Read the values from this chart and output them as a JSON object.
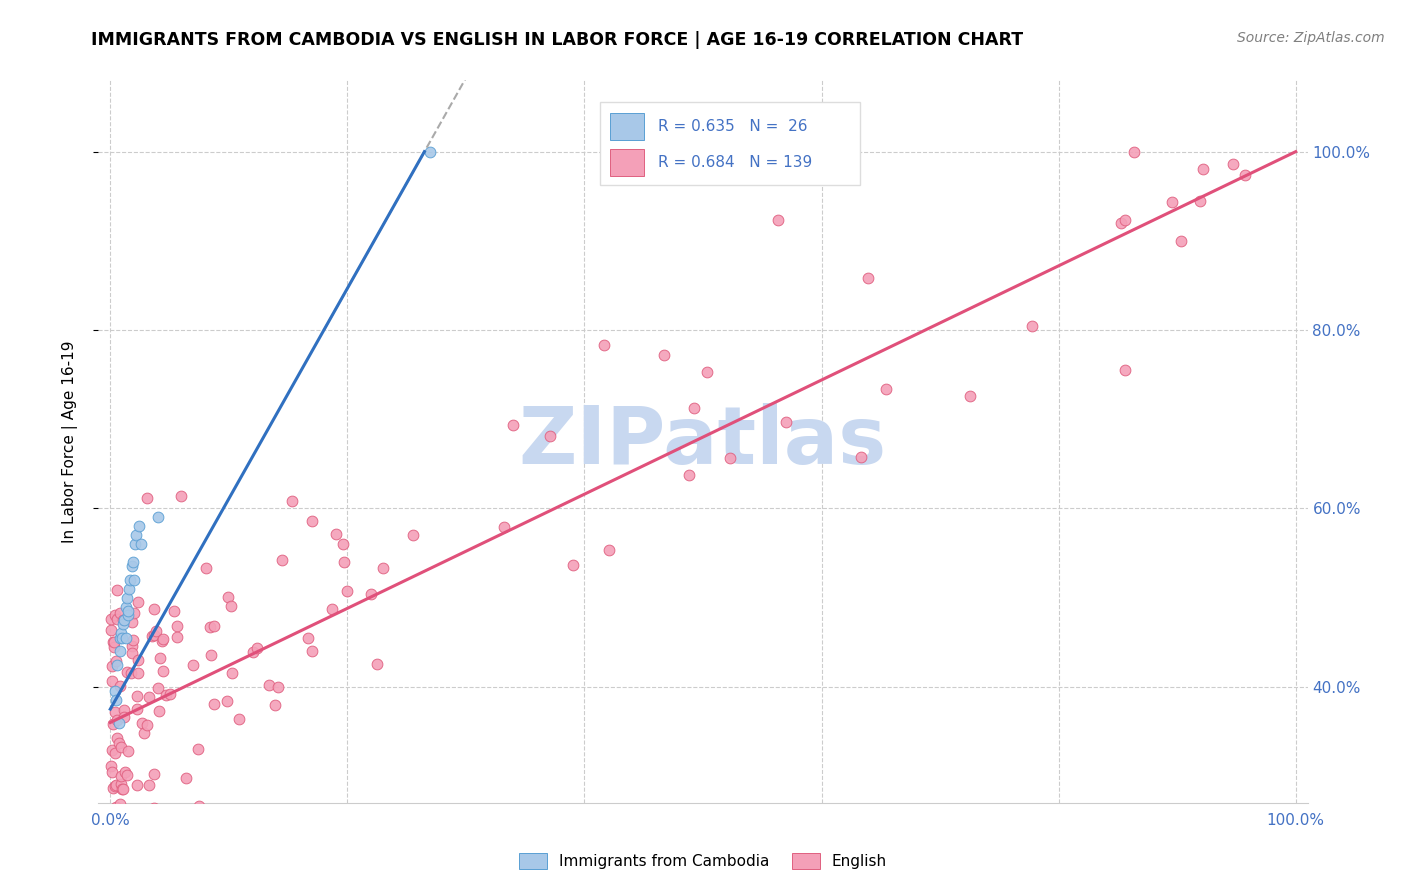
{
  "title": "IMMIGRANTS FROM CAMBODIA VS ENGLISH IN LABOR FORCE | AGE 16-19 CORRELATION CHART",
  "source": "Source: ZipAtlas.com",
  "ylabel": "In Labor Force | Age 16-19",
  "legend_r1": "R = 0.635",
  "legend_n1": "N =  26",
  "legend_r2": "R = 0.684",
  "legend_n2": "N = 139",
  "blue_fill": "#a8c8e8",
  "blue_edge": "#5a9fd4",
  "pink_fill": "#f4a0b8",
  "pink_edge": "#e06080",
  "blue_line": "#3070c0",
  "pink_line": "#e0507a",
  "text_color": "#4472c4",
  "watermark_color": "#c8d8f0",
  "background_color": "#ffffff",
  "grid_color": "#cccccc",
  "title_color": "#000000",
  "source_color": "#808080"
}
